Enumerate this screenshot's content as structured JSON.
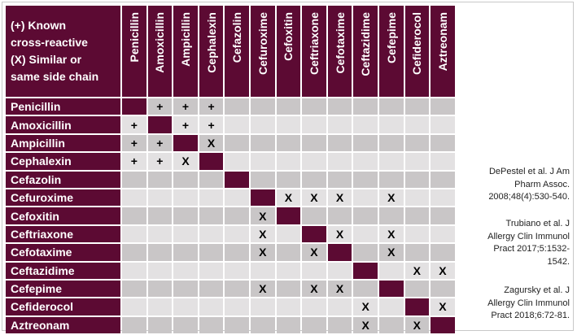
{
  "legend": {
    "line1": "(+) Known",
    "line2": "cross-reactive",
    "line3": "(X) Similar or",
    "line4": "same side chain"
  },
  "drugs": [
    "Penicillin",
    "Amoxicillin",
    "Ampicillin",
    "Cephalexin",
    "Cefazolin",
    "Cefuroxime",
    "Cefoxitin",
    "Ceftriaxone",
    "Cefotaxime",
    "Ceftazidime",
    "Cefepime",
    "Cefiderocol",
    "Aztreonam"
  ],
  "matrix": [
    [
      "",
      "+",
      "+",
      "+",
      "",
      "",
      "",
      "",
      "",
      "",
      "",
      "",
      ""
    ],
    [
      "+",
      "",
      "+",
      "+",
      "",
      "",
      "",
      "",
      "",
      "",
      "",
      "",
      ""
    ],
    [
      "+",
      "+",
      "",
      "X",
      "",
      "",
      "",
      "",
      "",
      "",
      "",
      "",
      ""
    ],
    [
      "+",
      "+",
      "X",
      "",
      "",
      "",
      "",
      "",
      "",
      "",
      "",
      "",
      ""
    ],
    [
      "",
      "",
      "",
      "",
      "",
      "",
      "",
      "",
      "",
      "",
      "",
      "",
      ""
    ],
    [
      "",
      "",
      "",
      "",
      "",
      "",
      "X",
      "X",
      "X",
      "",
      "X",
      "",
      ""
    ],
    [
      "",
      "",
      "",
      "",
      "",
      "X",
      "",
      "",
      "",
      "",
      "",
      "",
      ""
    ],
    [
      "",
      "",
      "",
      "",
      "",
      "X",
      "",
      "",
      "X",
      "",
      "X",
      "",
      ""
    ],
    [
      "",
      "",
      "",
      "",
      "",
      "X",
      "",
      "X",
      "",
      "",
      "X",
      "",
      ""
    ],
    [
      "",
      "",
      "",
      "",
      "",
      "",
      "",
      "",
      "",
      "",
      "",
      "X",
      "X"
    ],
    [
      "",
      "",
      "",
      "",
      "",
      "X",
      "",
      "X",
      "X",
      "",
      "",
      "",
      ""
    ],
    [
      "",
      "",
      "",
      "",
      "",
      "",
      "",
      "",
      "",
      "X",
      "",
      "",
      "X"
    ],
    [
      "",
      "",
      "",
      "",
      "",
      "",
      "",
      "",
      "",
      "X",
      "",
      "X",
      ""
    ]
  ],
  "references": [
    {
      "author": "DePestel",
      "rest_line1": " et al. J Am",
      "line2": "Pharm Assoc.",
      "line3": "2008;48(4):530-540."
    },
    {
      "author": "Trubiano",
      "rest_line1": " et al. J",
      "line2": "Allergy Clin Immunol",
      "line3": "Pract 2017;5:1532-",
      "line4": "1542."
    },
    {
      "author": "Zagursky",
      "rest_line1": " et al. J",
      "line2": "Allergy Clin Immunol",
      "line3": "Pract 2018;6:72-81."
    }
  ],
  "colors": {
    "header": "#5c0a33",
    "row_dark": "#c9c6c7",
    "row_light": "#e3e1e2"
  }
}
